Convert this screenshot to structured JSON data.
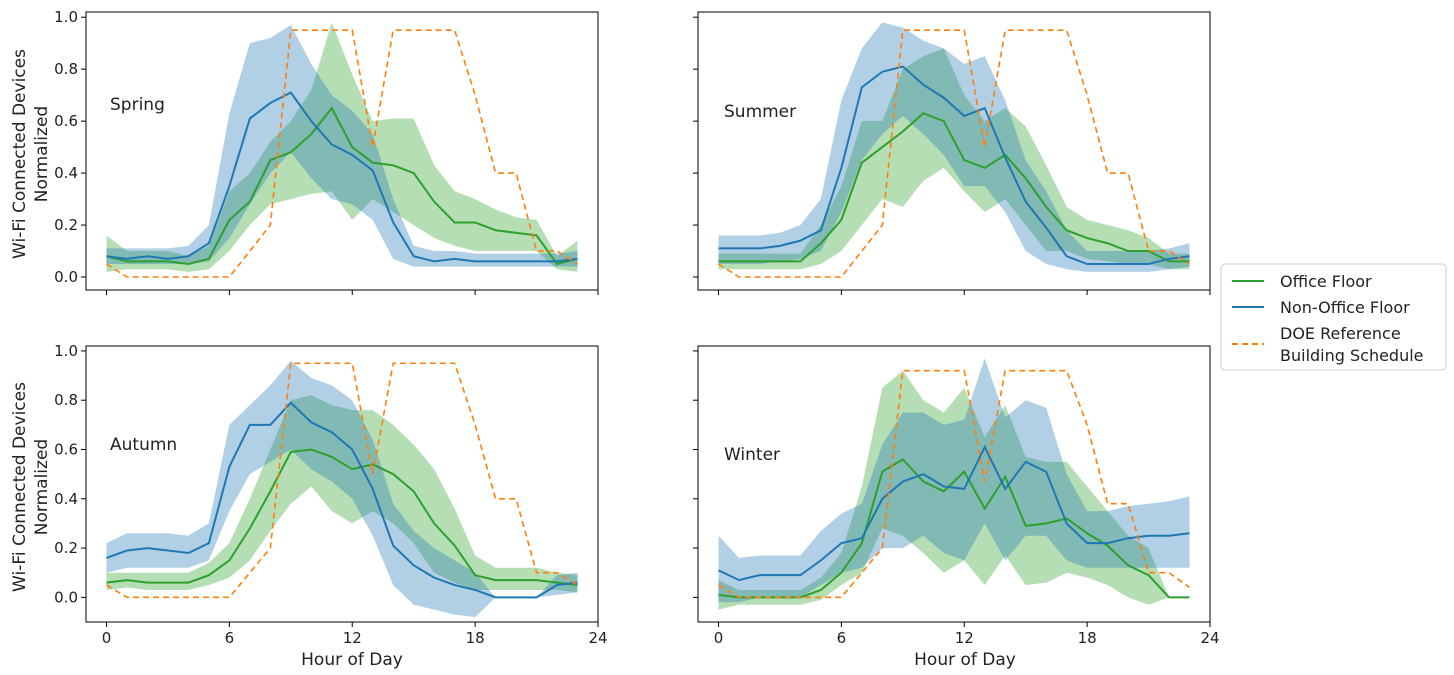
{
  "colors": {
    "office": "#2ca02c",
    "non_office": "#1f77b4",
    "doe": "#ff7f0e"
  },
  "legend": {
    "office": "Office Floor",
    "non_office": "Non-Office Floor",
    "doe_line1": "DOE Reference",
    "doe_line2": "Building Schedule"
  },
  "axes_text": {
    "ylabel_line1": "Wi-Fi Connected Devices",
    "ylabel_line2": "Normalized",
    "xlabel": "Hour of Day"
  },
  "chart_data": [
    {
      "type": "line",
      "title": "Spring",
      "xlabel": "",
      "ylabel": "Wi-Fi Connected Devices Normalized",
      "xlim": [
        -1,
        24
      ],
      "ylim": [
        -0.05,
        1.02
      ],
      "xticks": [
        0,
        6,
        12,
        18,
        24
      ],
      "yticks": [
        0.0,
        0.2,
        0.4,
        0.6,
        0.8,
        1.0
      ],
      "x": [
        0,
        1,
        2,
        3,
        4,
        5,
        6,
        7,
        8,
        9,
        10,
        11,
        12,
        13,
        14,
        15,
        16,
        17,
        18,
        19,
        20,
        21,
        22,
        23
      ],
      "series": [
        {
          "name": "Office Floor",
          "values": [
            0.08,
            0.06,
            0.06,
            0.06,
            0.05,
            0.07,
            0.22,
            0.29,
            0.45,
            0.48,
            0.55,
            0.65,
            0.5,
            0.44,
            0.43,
            0.4,
            0.29,
            0.21,
            0.21,
            0.18,
            0.17,
            0.16,
            0.05,
            0.07
          ],
          "lower": [
            0.02,
            0.03,
            0.03,
            0.03,
            0.02,
            0.03,
            0.1,
            0.2,
            0.28,
            0.3,
            0.32,
            0.33,
            0.22,
            0.3,
            0.25,
            0.2,
            0.15,
            0.12,
            0.1,
            0.1,
            0.1,
            0.1,
            0.03,
            0.02
          ],
          "upper": [
            0.16,
            0.1,
            0.1,
            0.1,
            0.08,
            0.12,
            0.33,
            0.4,
            0.52,
            0.6,
            0.72,
            0.98,
            0.78,
            0.6,
            0.61,
            0.61,
            0.43,
            0.33,
            0.3,
            0.26,
            0.23,
            0.22,
            0.08,
            0.14
          ]
        },
        {
          "name": "Non-Office Floor",
          "values": [
            0.08,
            0.07,
            0.08,
            0.07,
            0.08,
            0.13,
            0.35,
            0.61,
            0.67,
            0.71,
            0.6,
            0.51,
            0.47,
            0.41,
            0.21,
            0.08,
            0.06,
            0.07,
            0.06,
            0.06,
            0.06,
            0.06,
            0.06,
            0.07
          ],
          "lower": [
            0.05,
            0.05,
            0.05,
            0.05,
            0.05,
            0.06,
            0.15,
            0.28,
            0.4,
            0.48,
            0.38,
            0.3,
            0.28,
            0.22,
            0.07,
            0.04,
            0.04,
            0.04,
            0.04,
            0.04,
            0.04,
            0.04,
            0.04,
            0.04
          ],
          "upper": [
            0.11,
            0.11,
            0.11,
            0.11,
            0.12,
            0.2,
            0.63,
            0.9,
            0.92,
            0.97,
            0.82,
            0.7,
            0.64,
            0.55,
            0.3,
            0.12,
            0.1,
            0.1,
            0.09,
            0.09,
            0.09,
            0.09,
            0.09,
            0.1
          ]
        },
        {
          "name": "DOE Reference Building Schedule",
          "style": "dashed",
          "values": [
            0.05,
            0.0,
            0.0,
            0.0,
            0.0,
            0.0,
            0.0,
            0.1,
            0.2,
            0.95,
            0.95,
            0.95,
            0.95,
            0.5,
            0.95,
            0.95,
            0.95,
            0.95,
            0.7,
            0.4,
            0.4,
            0.1,
            0.1,
            0.05
          ]
        }
      ]
    },
    {
      "type": "line",
      "title": "Summer",
      "xlabel": "",
      "ylabel": "",
      "xlim": [
        -1,
        24
      ],
      "ylim": [
        -0.05,
        1.02
      ],
      "xticks": [
        0,
        6,
        12,
        18,
        24
      ],
      "yticks": [
        0.0,
        0.2,
        0.4,
        0.6,
        0.8,
        1.0
      ],
      "x": [
        0,
        1,
        2,
        3,
        4,
        5,
        6,
        7,
        8,
        9,
        10,
        11,
        12,
        13,
        14,
        15,
        16,
        17,
        18,
        19,
        20,
        21,
        22,
        23
      ],
      "series": [
        {
          "name": "Office Floor",
          "values": [
            0.06,
            0.06,
            0.06,
            0.06,
            0.06,
            0.13,
            0.22,
            0.44,
            0.5,
            0.56,
            0.63,
            0.6,
            0.45,
            0.42,
            0.47,
            0.38,
            0.27,
            0.18,
            0.15,
            0.13,
            0.1,
            0.1,
            0.06,
            0.06
          ],
          "lower": [
            0.03,
            0.03,
            0.03,
            0.03,
            0.03,
            0.05,
            0.1,
            0.2,
            0.3,
            0.27,
            0.37,
            0.42,
            0.33,
            0.25,
            0.3,
            0.2,
            0.1,
            0.1,
            0.07,
            0.06,
            0.05,
            0.05,
            0.03,
            0.03
          ],
          "upper": [
            0.09,
            0.09,
            0.09,
            0.09,
            0.09,
            0.2,
            0.35,
            0.6,
            0.6,
            0.8,
            0.85,
            0.88,
            0.7,
            0.6,
            0.65,
            0.58,
            0.43,
            0.27,
            0.22,
            0.2,
            0.18,
            0.15,
            0.09,
            0.09
          ]
        },
        {
          "name": "Non-Office Floor",
          "values": [
            0.11,
            0.11,
            0.11,
            0.12,
            0.14,
            0.18,
            0.42,
            0.73,
            0.79,
            0.81,
            0.74,
            0.69,
            0.62,
            0.65,
            0.46,
            0.29,
            0.19,
            0.08,
            0.05,
            0.05,
            0.05,
            0.05,
            0.07,
            0.08
          ],
          "lower": [
            0.05,
            0.05,
            0.05,
            0.06,
            0.07,
            0.1,
            0.25,
            0.45,
            0.55,
            0.62,
            0.55,
            0.47,
            0.35,
            0.35,
            0.25,
            0.1,
            0.05,
            0.03,
            0.02,
            0.02,
            0.02,
            0.02,
            0.03,
            0.04
          ],
          "upper": [
            0.16,
            0.16,
            0.16,
            0.17,
            0.2,
            0.3,
            0.68,
            0.88,
            0.98,
            0.96,
            0.91,
            0.88,
            0.82,
            0.85,
            0.68,
            0.45,
            0.33,
            0.18,
            0.1,
            0.1,
            0.1,
            0.1,
            0.11,
            0.13
          ]
        },
        {
          "name": "DOE Reference Building Schedule",
          "style": "dashed",
          "values": [
            0.05,
            0.0,
            0.0,
            0.0,
            0.0,
            0.0,
            0.0,
            0.1,
            0.2,
            0.95,
            0.95,
            0.95,
            0.95,
            0.5,
            0.95,
            0.95,
            0.95,
            0.95,
            0.7,
            0.4,
            0.4,
            0.1,
            0.1,
            0.05
          ]
        }
      ]
    },
    {
      "type": "line",
      "title": "Autumn",
      "xlabel": "Hour of Day",
      "ylabel": "Wi-Fi Connected Devices Normalized",
      "xlim": [
        -1,
        24
      ],
      "ylim": [
        -0.1,
        1.02
      ],
      "xticks": [
        0,
        6,
        12,
        18,
        24
      ],
      "yticks": [
        0.0,
        0.2,
        0.4,
        0.6,
        0.8,
        1.0
      ],
      "x": [
        0,
        1,
        2,
        3,
        4,
        5,
        6,
        7,
        8,
        9,
        10,
        11,
        12,
        13,
        14,
        15,
        16,
        17,
        18,
        19,
        20,
        21,
        22,
        23
      ],
      "series": [
        {
          "name": "Office Floor",
          "values": [
            0.06,
            0.07,
            0.06,
            0.06,
            0.06,
            0.09,
            0.15,
            0.28,
            0.43,
            0.59,
            0.6,
            0.57,
            0.52,
            0.54,
            0.5,
            0.43,
            0.3,
            0.21,
            0.09,
            0.07,
            0.07,
            0.07,
            0.06,
            0.05
          ],
          "lower": [
            0.03,
            0.04,
            0.03,
            0.03,
            0.03,
            0.05,
            0.08,
            0.15,
            0.27,
            0.38,
            0.45,
            0.35,
            0.3,
            0.35,
            0.3,
            0.22,
            0.1,
            0.06,
            0.03,
            0.03,
            0.03,
            0.03,
            0.03,
            0.02
          ],
          "upper": [
            0.1,
            0.1,
            0.1,
            0.1,
            0.1,
            0.14,
            0.22,
            0.4,
            0.6,
            0.8,
            0.82,
            0.78,
            0.76,
            0.76,
            0.7,
            0.62,
            0.52,
            0.36,
            0.17,
            0.12,
            0.12,
            0.12,
            0.1,
            0.09
          ]
        },
        {
          "name": "Non-Office Floor",
          "values": [
            0.16,
            0.19,
            0.2,
            0.19,
            0.18,
            0.22,
            0.53,
            0.7,
            0.7,
            0.79,
            0.71,
            0.67,
            0.6,
            0.44,
            0.21,
            0.13,
            0.08,
            0.05,
            0.03,
            0.0,
            0.0,
            0.0,
            0.05,
            0.06
          ],
          "lower": [
            0.1,
            0.12,
            0.12,
            0.12,
            0.12,
            0.15,
            0.35,
            0.5,
            0.55,
            0.6,
            0.52,
            0.47,
            0.4,
            0.25,
            0.05,
            -0.03,
            -0.05,
            -0.07,
            -0.08,
            0.0,
            0.0,
            0.0,
            0.01,
            0.02
          ],
          "upper": [
            0.22,
            0.26,
            0.26,
            0.26,
            0.25,
            0.3,
            0.7,
            0.78,
            0.86,
            0.96,
            0.89,
            0.86,
            0.8,
            0.64,
            0.38,
            0.27,
            0.2,
            0.15,
            0.1,
            0.0,
            0.0,
            0.0,
            0.09,
            0.1
          ]
        },
        {
          "name": "DOE Reference Building Schedule",
          "style": "dashed",
          "values": [
            0.05,
            0.0,
            0.0,
            0.0,
            0.0,
            0.0,
            0.0,
            0.1,
            0.2,
            0.95,
            0.95,
            0.95,
            0.95,
            0.5,
            0.95,
            0.95,
            0.95,
            0.95,
            0.7,
            0.4,
            0.4,
            0.1,
            0.1,
            0.05
          ]
        }
      ]
    },
    {
      "type": "line",
      "title": "Winter",
      "xlabel": "Hour of Day",
      "ylabel": "",
      "xlim": [
        -1,
        24
      ],
      "ylim": [
        -0.1,
        1.02
      ],
      "xticks": [
        0,
        6,
        12,
        18,
        24
      ],
      "yticks": [
        0.0,
        0.2,
        0.4,
        0.6,
        0.8,
        1.0
      ],
      "x": [
        0,
        1,
        2,
        3,
        4,
        5,
        6,
        7,
        8,
        9,
        10,
        11,
        12,
        13,
        14,
        15,
        16,
        17,
        18,
        19,
        20,
        21,
        22,
        23
      ],
      "series": [
        {
          "name": "Office Floor",
          "values": [
            0.01,
            0.0,
            0.0,
            0.0,
            0.0,
            0.03,
            0.1,
            0.22,
            0.51,
            0.56,
            0.47,
            0.43,
            0.51,
            0.36,
            0.49,
            0.29,
            0.3,
            0.32,
            0.26,
            0.21,
            0.13,
            0.09,
            0.0,
            0.0
          ],
          "lower": [
            -0.05,
            -0.03,
            -0.03,
            -0.03,
            -0.03,
            -0.01,
            0.05,
            0.1,
            0.28,
            0.25,
            0.18,
            0.1,
            0.15,
            0.05,
            0.17,
            0.05,
            0.06,
            0.1,
            0.08,
            0.05,
            0.0,
            -0.03,
            0.0,
            0.0
          ],
          "upper": [
            0.07,
            0.03,
            0.03,
            0.03,
            0.03,
            0.08,
            0.18,
            0.45,
            0.85,
            0.92,
            0.8,
            0.75,
            0.85,
            0.65,
            0.78,
            0.57,
            0.55,
            0.55,
            0.45,
            0.35,
            0.25,
            0.2,
            0.0,
            0.0
          ]
        },
        {
          "name": "Non-Office Floor",
          "values": [
            0.11,
            0.07,
            0.09,
            0.09,
            0.09,
            0.15,
            0.22,
            0.24,
            0.4,
            0.47,
            0.5,
            0.45,
            0.44,
            0.61,
            0.44,
            0.55,
            0.51,
            0.3,
            0.22,
            0.22,
            0.24,
            0.25,
            0.25,
            0.26
          ],
          "lower": [
            -0.02,
            -0.02,
            0.0,
            0.0,
            0.0,
            0.05,
            0.1,
            0.12,
            0.2,
            0.2,
            0.25,
            0.18,
            0.15,
            0.3,
            0.15,
            0.25,
            0.25,
            0.15,
            0.12,
            0.12,
            0.12,
            0.12,
            0.12,
            0.12
          ],
          "upper": [
            0.25,
            0.16,
            0.17,
            0.17,
            0.17,
            0.27,
            0.34,
            0.38,
            0.62,
            0.75,
            0.75,
            0.7,
            0.72,
            0.97,
            0.73,
            0.8,
            0.77,
            0.5,
            0.35,
            0.35,
            0.37,
            0.38,
            0.39,
            0.41
          ]
        },
        {
          "name": "DOE Reference Building Schedule",
          "style": "dashed",
          "values": [
            0.05,
            0.0,
            0.0,
            0.0,
            0.0,
            0.0,
            0.0,
            0.1,
            0.2,
            0.92,
            0.92,
            0.92,
            0.92,
            0.47,
            0.92,
            0.92,
            0.92,
            0.92,
            0.7,
            0.38,
            0.38,
            0.1,
            0.1,
            0.04
          ]
        }
      ]
    }
  ]
}
